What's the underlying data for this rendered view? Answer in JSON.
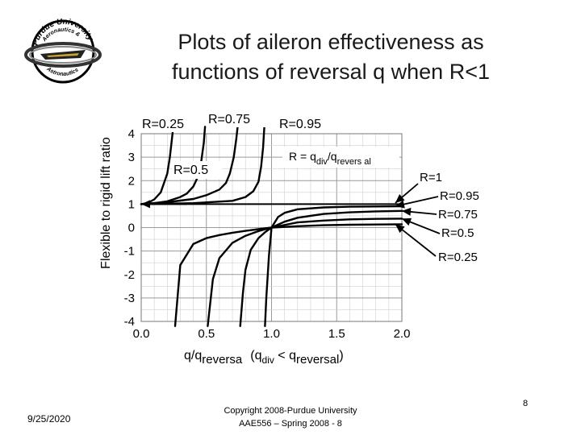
{
  "title_line1": "Plots of aileron effectiveness as",
  "title_line2": "functions of reversal q when R<1",
  "logo": {
    "top_text": "Purdue University",
    "mid_text": "Aeronautics &",
    "bottom_text": "Astronautics"
  },
  "footer": {
    "date": "9/25/2020",
    "copyright_line1": "Copyright 2008-Purdue University",
    "copyright_line2": "AAE556 – Spring 2008 - 8",
    "page_number": "8"
  },
  "chart_data": {
    "type": "line",
    "ylabel": "Flexible to rigid lift ratio",
    "xlabel": {
      "main": "q/q",
      "main_sub": "reversa",
      "cond_open": "(q",
      "cond_sub1": "div",
      "cond_mid": " < q",
      "cond_sub2": "reversal",
      "cond_close": ")"
    },
    "xlim": [
      0,
      2
    ],
    "ylim": [
      -4,
      4
    ],
    "x_ticks": [
      0,
      0.5,
      1,
      1.5,
      2
    ],
    "x_tick_labels": [
      "0.0",
      "0.5",
      "1.0",
      "1.5",
      "2.0"
    ],
    "y_ticks": [
      -4,
      -3,
      -2,
      -1,
      0,
      1,
      2,
      3,
      4
    ],
    "y_tick_labels": [
      "-4",
      "-3",
      "-2",
      "-1",
      "0",
      "1",
      "2",
      "3",
      "4"
    ],
    "grid": true,
    "formula": {
      "lhs": "R = q",
      "sub1": "div",
      "slash": "/q",
      "sub2": "revers al"
    },
    "upper_labels": [
      "R=0.25",
      "R=0.75",
      "R=0.95",
      "R=0.5"
    ],
    "right_labels": [
      "R=1",
      "R=0.95",
      "R=0.75",
      "R=0.5",
      "R=0.25"
    ],
    "series": [
      {
        "name": "R=1",
        "x": [
          0,
          2
        ],
        "y": [
          1,
          1
        ]
      },
      {
        "name": "R=0.25",
        "x": [
          0,
          0.05,
          0.1,
          0.15,
          0.2,
          0.22,
          0.24,
          0.245
        ],
        "y": [
          1,
          1.05,
          1.2,
          1.5,
          2.3,
          3.0,
          4.0,
          4.3
        ]
      },
      {
        "name": "R=0.5",
        "x": [
          0,
          0.1,
          0.2,
          0.3,
          0.35,
          0.4,
          0.43,
          0.46,
          0.48,
          0.49
        ],
        "y": [
          1,
          1.04,
          1.12,
          1.3,
          1.45,
          1.75,
          2.1,
          2.8,
          3.6,
          4.3
        ]
      },
      {
        "name": "R=0.75",
        "x": [
          0,
          0.2,
          0.4,
          0.5,
          0.6,
          0.65,
          0.68,
          0.71,
          0.73,
          0.74
        ],
        "y": [
          1,
          1.08,
          1.22,
          1.38,
          1.62,
          1.9,
          2.3,
          3.0,
          3.8,
          4.3
        ]
      },
      {
        "name": "R=0.95",
        "x": [
          0,
          0.4,
          0.7,
          0.8,
          0.86,
          0.9,
          0.92,
          0.935,
          0.945
        ],
        "y": [
          1,
          1.04,
          1.14,
          1.3,
          1.55,
          1.95,
          2.6,
          3.4,
          4.3
        ]
      },
      {
        "name": "R=0.95",
        "x": [
          0.95,
          0.96,
          0.98,
          1.0,
          1.05,
          1.1,
          1.2,
          1.4,
          1.6,
          1.8,
          2.0
        ],
        "y": [
          -4.2,
          -3.0,
          -1.2,
          0,
          0.45,
          0.63,
          0.78,
          0.86,
          0.89,
          0.9,
          0.91
        ]
      },
      {
        "name": "R=0.75",
        "x": [
          0.76,
          0.78,
          0.8,
          0.84,
          0.9,
          0.95,
          1.0,
          1.1,
          1.2,
          1.4,
          1.6,
          1.8,
          2.0
        ],
        "y": [
          -4.2,
          -2.8,
          -1.8,
          -0.95,
          -0.45,
          -0.2,
          0,
          0.25,
          0.42,
          0.58,
          0.65,
          0.69,
          0.71
        ]
      },
      {
        "name": "R=0.5",
        "x": [
          0.51,
          0.55,
          0.6,
          0.7,
          0.8,
          0.9,
          1.0,
          1.2,
          1.4,
          1.6,
          1.8,
          2.0
        ],
        "y": [
          -4.2,
          -2.2,
          -1.3,
          -0.65,
          -0.35,
          -0.15,
          0,
          0.22,
          0.3,
          0.35,
          0.37,
          0.38
        ]
      },
      {
        "name": "R=0.25",
        "x": [
          0.26,
          0.3,
          0.4,
          0.5,
          0.6,
          0.7,
          0.8,
          0.9,
          1.0,
          1.2,
          1.4,
          1.6,
          1.8,
          2.0
        ],
        "y": [
          -4.2,
          -1.6,
          -0.7,
          -0.45,
          -0.32,
          -0.22,
          -0.14,
          -0.07,
          0,
          0.06,
          0.1,
          0.12,
          0.13,
          0.14
        ]
      }
    ]
  }
}
